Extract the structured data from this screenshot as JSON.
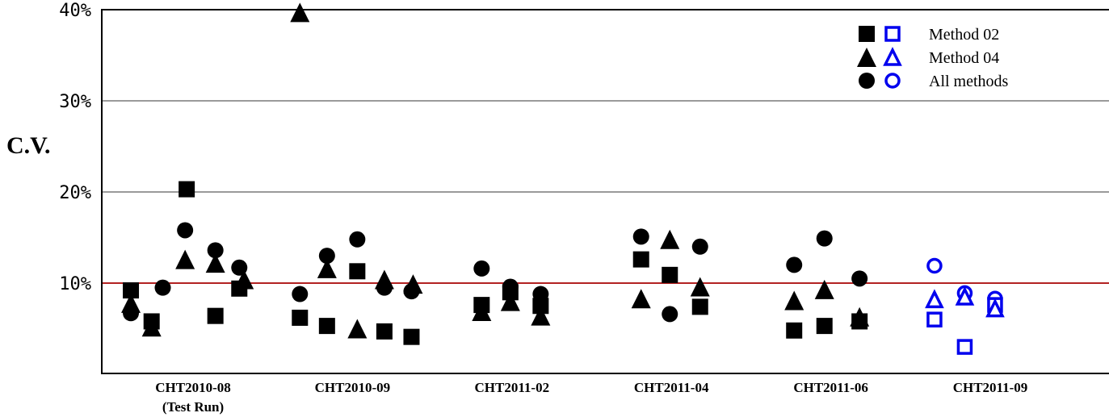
{
  "chart_data": {
    "type": "scatter",
    "ylabel": "C.V.",
    "ylim": [
      0,
      41
    ],
    "yticks": [
      {
        "value": 10,
        "label": "10%"
      },
      {
        "value": 20,
        "label": "20%"
      },
      {
        "value": 30,
        "label": "30%"
      },
      {
        "value": 40,
        "label": "40%"
      }
    ],
    "reference_line": {
      "value": 10,
      "color": "#b22222"
    },
    "grid": "horizontal",
    "legend_position": "top-right",
    "categories": [
      {
        "line1": "CHT2010-08",
        "line2": "(Test Run)"
      },
      {
        "line1": "CHT2010-09",
        "line2": ""
      },
      {
        "line1": "CHT2011-02",
        "line2": ""
      },
      {
        "line1": "CHT2011-04",
        "line2": ""
      },
      {
        "line1": "CHT2011-06",
        "line2": ""
      },
      {
        "line1": "CHT2011-09",
        "line2": ""
      }
    ],
    "legend": [
      {
        "marker": "square",
        "label": "Method 02"
      },
      {
        "marker": "triangle",
        "label": "Method 04"
      },
      {
        "marker": "circle",
        "label": "All methods"
      }
    ],
    "colors": {
      "filled": "#000000",
      "open": "#0000ee"
    },
    "points": [
      {
        "cat": 0,
        "off": -0.4,
        "y": 9.2,
        "marker": "square",
        "fill": "filled"
      },
      {
        "cat": 0,
        "off": -0.4,
        "y": 7.8,
        "marker": "triangle",
        "fill": "filled"
      },
      {
        "cat": 0,
        "off": -0.4,
        "y": 6.7,
        "marker": "circle",
        "fill": "filled"
      },
      {
        "cat": 0,
        "off": -0.27,
        "y": 5.8,
        "marker": "square",
        "fill": "filled"
      },
      {
        "cat": 0,
        "off": -0.27,
        "y": 5.2,
        "marker": "triangle",
        "fill": "filled"
      },
      {
        "cat": 0,
        "off": -0.2,
        "y": 9.5,
        "marker": "circle",
        "fill": "filled"
      },
      {
        "cat": 0,
        "off": -0.05,
        "y": 20.3,
        "marker": "square",
        "fill": "filled"
      },
      {
        "cat": 0,
        "off": -0.06,
        "y": 15.8,
        "marker": "circle",
        "fill": "filled"
      },
      {
        "cat": 0,
        "off": -0.06,
        "y": 12.6,
        "marker": "triangle",
        "fill": "filled"
      },
      {
        "cat": 0,
        "off": 0.13,
        "y": 13.6,
        "marker": "circle",
        "fill": "filled"
      },
      {
        "cat": 0,
        "off": 0.13,
        "y": 12.2,
        "marker": "triangle",
        "fill": "filled"
      },
      {
        "cat": 0,
        "off": 0.13,
        "y": 6.4,
        "marker": "square",
        "fill": "filled"
      },
      {
        "cat": 0,
        "off": 0.28,
        "y": 11.7,
        "marker": "circle",
        "fill": "filled"
      },
      {
        "cat": 0,
        "off": 0.31,
        "y": 10.4,
        "marker": "triangle",
        "fill": "filled"
      },
      {
        "cat": 0,
        "off": 0.28,
        "y": 9.4,
        "marker": "square",
        "fill": "filled"
      },
      {
        "cat": 1,
        "off": -0.34,
        "y": 39.7,
        "marker": "triangle",
        "fill": "filled"
      },
      {
        "cat": 1,
        "off": -0.34,
        "y": 8.8,
        "marker": "circle",
        "fill": "filled"
      },
      {
        "cat": 1,
        "off": -0.34,
        "y": 6.2,
        "marker": "square",
        "fill": "filled"
      },
      {
        "cat": 1,
        "off": -0.17,
        "y": 13.0,
        "marker": "circle",
        "fill": "filled"
      },
      {
        "cat": 1,
        "off": -0.17,
        "y": 11.6,
        "marker": "triangle",
        "fill": "filled"
      },
      {
        "cat": 1,
        "off": -0.17,
        "y": 5.3,
        "marker": "square",
        "fill": "filled"
      },
      {
        "cat": 1,
        "off": 0.02,
        "y": 14.8,
        "marker": "circle",
        "fill": "filled"
      },
      {
        "cat": 1,
        "off": 0.02,
        "y": 11.3,
        "marker": "square",
        "fill": "filled"
      },
      {
        "cat": 1,
        "off": 0.02,
        "y": 5.0,
        "marker": "triangle",
        "fill": "filled"
      },
      {
        "cat": 1,
        "off": 0.19,
        "y": 10.4,
        "marker": "triangle",
        "fill": "filled"
      },
      {
        "cat": 1,
        "off": 0.19,
        "y": 9.5,
        "marker": "circle",
        "fill": "filled"
      },
      {
        "cat": 1,
        "off": 0.19,
        "y": 4.7,
        "marker": "square",
        "fill": "filled"
      },
      {
        "cat": 1,
        "off": 0.37,
        "y": 9.9,
        "marker": "triangle",
        "fill": "filled"
      },
      {
        "cat": 1,
        "off": 0.36,
        "y": 9.1,
        "marker": "circle",
        "fill": "filled"
      },
      {
        "cat": 1,
        "off": 0.36,
        "y": 4.1,
        "marker": "square",
        "fill": "filled"
      },
      {
        "cat": 2,
        "off": -0.2,
        "y": 11.6,
        "marker": "circle",
        "fill": "filled"
      },
      {
        "cat": 2,
        "off": -0.2,
        "y": 7.6,
        "marker": "square",
        "fill": "filled"
      },
      {
        "cat": 2,
        "off": -0.2,
        "y": 6.9,
        "marker": "triangle",
        "fill": "filled"
      },
      {
        "cat": 2,
        "off": -0.02,
        "y": 9.6,
        "marker": "circle",
        "fill": "filled"
      },
      {
        "cat": 2,
        "off": -0.02,
        "y": 9.0,
        "marker": "square",
        "fill": "filled"
      },
      {
        "cat": 2,
        "off": -0.02,
        "y": 8.0,
        "marker": "triangle",
        "fill": "filled"
      },
      {
        "cat": 2,
        "off": 0.17,
        "y": 8.8,
        "marker": "circle",
        "fill": "filled"
      },
      {
        "cat": 2,
        "off": 0.17,
        "y": 7.5,
        "marker": "square",
        "fill": "filled"
      },
      {
        "cat": 2,
        "off": 0.17,
        "y": 6.4,
        "marker": "triangle",
        "fill": "filled"
      },
      {
        "cat": 3,
        "off": -0.2,
        "y": 15.1,
        "marker": "circle",
        "fill": "filled"
      },
      {
        "cat": 3,
        "off": -0.2,
        "y": 12.6,
        "marker": "square",
        "fill": "filled"
      },
      {
        "cat": 3,
        "off": -0.2,
        "y": 8.3,
        "marker": "triangle",
        "fill": "filled"
      },
      {
        "cat": 3,
        "off": -0.02,
        "y": 14.8,
        "marker": "triangle",
        "fill": "filled"
      },
      {
        "cat": 3,
        "off": -0.02,
        "y": 10.9,
        "marker": "square",
        "fill": "filled"
      },
      {
        "cat": 3,
        "off": -0.02,
        "y": 6.6,
        "marker": "circle",
        "fill": "filled"
      },
      {
        "cat": 3,
        "off": 0.17,
        "y": 14.0,
        "marker": "circle",
        "fill": "filled"
      },
      {
        "cat": 3,
        "off": 0.17,
        "y": 9.6,
        "marker": "triangle",
        "fill": "filled"
      },
      {
        "cat": 3,
        "off": 0.17,
        "y": 7.4,
        "marker": "square",
        "fill": "filled"
      },
      {
        "cat": 4,
        "off": -0.24,
        "y": 12.0,
        "marker": "circle",
        "fill": "filled"
      },
      {
        "cat": 4,
        "off": -0.24,
        "y": 8.1,
        "marker": "triangle",
        "fill": "filled"
      },
      {
        "cat": 4,
        "off": -0.24,
        "y": 4.8,
        "marker": "square",
        "fill": "filled"
      },
      {
        "cat": 4,
        "off": -0.05,
        "y": 14.9,
        "marker": "circle",
        "fill": "filled"
      },
      {
        "cat": 4,
        "off": -0.05,
        "y": 9.3,
        "marker": "triangle",
        "fill": "filled"
      },
      {
        "cat": 4,
        "off": -0.05,
        "y": 5.3,
        "marker": "square",
        "fill": "filled"
      },
      {
        "cat": 4,
        "off": 0.17,
        "y": 10.5,
        "marker": "circle",
        "fill": "filled"
      },
      {
        "cat": 4,
        "off": 0.17,
        "y": 6.3,
        "marker": "triangle",
        "fill": "filled"
      },
      {
        "cat": 4,
        "off": 0.17,
        "y": 5.8,
        "marker": "square",
        "fill": "filled"
      },
      {
        "cat": 5,
        "off": -0.36,
        "y": 11.9,
        "marker": "circle",
        "fill": "open"
      },
      {
        "cat": 5,
        "off": -0.36,
        "y": 8.2,
        "marker": "triangle",
        "fill": "open"
      },
      {
        "cat": 5,
        "off": -0.36,
        "y": 6.0,
        "marker": "square",
        "fill": "open"
      },
      {
        "cat": 5,
        "off": -0.17,
        "y": 8.9,
        "marker": "circle",
        "fill": "open"
      },
      {
        "cat": 5,
        "off": -0.17,
        "y": 8.5,
        "marker": "triangle",
        "fill": "open"
      },
      {
        "cat": 5,
        "off": -0.17,
        "y": 3.0,
        "marker": "square",
        "fill": "open"
      },
      {
        "cat": 5,
        "off": 0.02,
        "y": 8.3,
        "marker": "circle",
        "fill": "open"
      },
      {
        "cat": 5,
        "off": 0.02,
        "y": 7.6,
        "marker": "square",
        "fill": "open"
      },
      {
        "cat": 5,
        "off": 0.02,
        "y": 7.2,
        "marker": "triangle",
        "fill": "open"
      }
    ]
  }
}
